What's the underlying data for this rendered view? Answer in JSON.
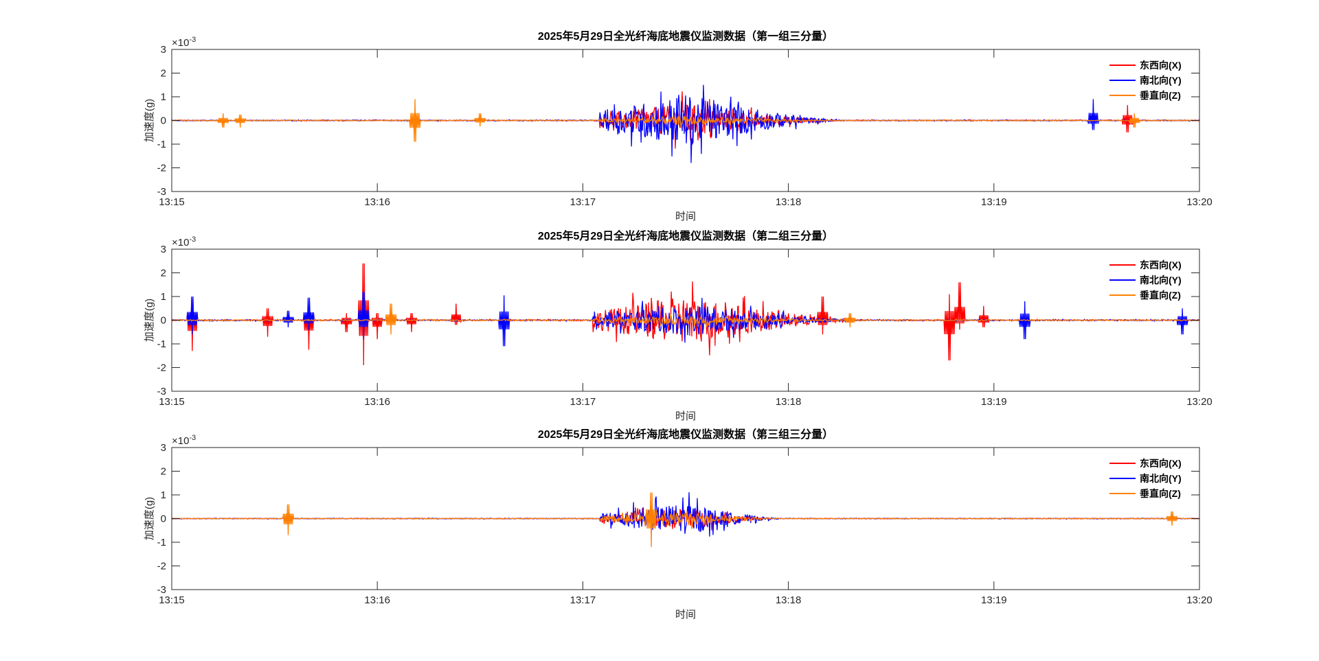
{
  "chart_data": [
    {
      "type": "line",
      "title": "2025年5月29日全光纤海底地震仪监测数据（第一组三分量）",
      "xlabel": "时间",
      "ylabel": "加速度(g)",
      "y_exponent": "×10",
      "y_exponent_power": "-3",
      "xlim": [
        "13:15",
        "13:20"
      ],
      "ylim": [
        -3,
        3
      ],
      "x_ticks": [
        "13:15",
        "13:16",
        "13:17",
        "13:18",
        "13:19",
        "13:20"
      ],
      "y_ticks": [
        "3",
        "2",
        "1",
        "0",
        "-1",
        "-2",
        "-3"
      ],
      "legend_placement": "top-right",
      "series": [
        {
          "name": "东西向(X)",
          "color": "#ff0000"
        },
        {
          "name": "南北向(Y)",
          "color": "#0000ff"
        },
        {
          "name": "垂直向(Z)",
          "color": "#ff8000"
        }
      ],
      "noise_level": 0.03,
      "main_event": {
        "start": "13:17:05",
        "peak": "13:17:30",
        "end": "13:18:20",
        "peak_amplitude": {
          "X": 1.3,
          "Y": 2.0,
          "Z": 0.35
        }
      },
      "spikes": [
        {
          "time": "13:15:15",
          "series": "Z",
          "max": 0.3,
          "min": -0.3
        },
        {
          "time": "13:15:20",
          "series": "Z",
          "max": 0.25,
          "min": -0.3
        },
        {
          "time": "13:16:11",
          "series": "Z",
          "max": 0.9,
          "min": -0.9
        },
        {
          "time": "13:16:30",
          "series": "Z",
          "max": 0.3,
          "min": -0.25
        },
        {
          "time": "13:19:29",
          "series": "Y",
          "max": 0.9,
          "min": -0.4
        },
        {
          "time": "13:19:39",
          "series": "X",
          "max": 0.65,
          "min": -0.5
        },
        {
          "time": "13:19:41",
          "series": "Z",
          "max": 0.3,
          "min": -0.3
        }
      ]
    },
    {
      "type": "line",
      "title": "2025年5月29日全光纤海底地震仪监测数据（第二组三分量）",
      "xlabel": "时间",
      "ylabel": "加速度(g)",
      "y_exponent": "×10",
      "y_exponent_power": "-3",
      "xlim": [
        "13:15",
        "13:20"
      ],
      "ylim": [
        -3,
        3
      ],
      "x_ticks": [
        "13:15",
        "13:16",
        "13:17",
        "13:18",
        "13:19",
        "13:20"
      ],
      "y_ticks": [
        "3",
        "2",
        "1",
        "0",
        "-1",
        "-2",
        "-3"
      ],
      "legend_placement": "top-right",
      "series": [
        {
          "name": "东西向(X)",
          "color": "#ff0000"
        },
        {
          "name": "南北向(Y)",
          "color": "#0000ff"
        },
        {
          "name": "垂直向(Z)",
          "color": "#ff8000"
        }
      ],
      "noise_level": 0.04,
      "main_event": {
        "start": "13:17:03",
        "peak": "13:17:31",
        "end": "13:18:25",
        "peak_amplitude": {
          "X": 1.9,
          "Y": 1.2,
          "Z": 0.35
        }
      },
      "spikes": [
        {
          "time": "13:15:06",
          "series": "X",
          "max": 0.9,
          "min": -1.3
        },
        {
          "time": "13:15:06",
          "series": "Y",
          "max": 1.0,
          "min": -0.6
        },
        {
          "time": "13:15:28",
          "series": "X",
          "max": 0.5,
          "min": -0.7
        },
        {
          "time": "13:15:34",
          "series": "Y",
          "max": 0.4,
          "min": -0.3
        },
        {
          "time": "13:15:40",
          "series": "Y",
          "max": 0.95,
          "min": -0.4
        },
        {
          "time": "13:15:40",
          "series": "X",
          "max": 0.3,
          "min": -1.25
        },
        {
          "time": "13:15:51",
          "series": "X",
          "max": 0.3,
          "min": -0.5
        },
        {
          "time": "13:15:56",
          "series": "X",
          "max": 2.4,
          "min": -1.9
        },
        {
          "time": "13:15:56",
          "series": "Y",
          "max": 1.2,
          "min": -0.8
        },
        {
          "time": "13:16:00",
          "series": "X",
          "max": 0.3,
          "min": -0.8
        },
        {
          "time": "13:16:04",
          "series": "Z",
          "max": 0.7,
          "min": -0.6
        },
        {
          "time": "13:16:10",
          "series": "X",
          "max": 0.3,
          "min": -0.5
        },
        {
          "time": "13:16:23",
          "series": "X",
          "max": 0.7,
          "min": -0.2
        },
        {
          "time": "13:16:37",
          "series": "Y",
          "max": 1.05,
          "min": -1.1
        },
        {
          "time": "13:18:10",
          "series": "X",
          "max": 1.0,
          "min": -0.6
        },
        {
          "time": "13:18:18",
          "series": "Z",
          "max": 0.3,
          "min": -0.3
        },
        {
          "time": "13:18:47",
          "series": "X",
          "max": 1.1,
          "min": -1.7
        },
        {
          "time": "13:18:50",
          "series": "X",
          "max": 1.6,
          "min": -0.4
        },
        {
          "time": "13:18:57",
          "series": "X",
          "max": 0.6,
          "min": -0.3
        },
        {
          "time": "13:19:09",
          "series": "Y",
          "max": 0.8,
          "min": -0.8
        },
        {
          "time": "13:19:55",
          "series": "Y",
          "max": 0.5,
          "min": -0.6
        }
      ]
    },
    {
      "type": "line",
      "title": "2025年5月29日全光纤海底地震仪监测数据（第三组三分量）",
      "xlabel": "时间",
      "ylabel": "加速度(g)",
      "y_exponent": "×10",
      "y_exponent_power": "-3",
      "xlim": [
        "13:15",
        "13:20"
      ],
      "ylim": [
        -3,
        3
      ],
      "x_ticks": [
        "13:15",
        "13:16",
        "13:17",
        "13:18",
        "13:19",
        "13:20"
      ],
      "y_ticks": [
        "3",
        "2",
        "1",
        "0",
        "-1",
        "-2",
        "-3"
      ],
      "legend_placement": "top-right",
      "series": [
        {
          "name": "东西向(X)",
          "color": "#ff0000"
        },
        {
          "name": "南北向(Y)",
          "color": "#0000ff"
        },
        {
          "name": "垂直向(Z)",
          "color": "#ff8000"
        }
      ],
      "noise_level": 0.02,
      "main_event": {
        "start": "13:17:05",
        "peak": "13:17:30",
        "end": "13:18:00",
        "peak_amplitude": {
          "X": 0.8,
          "Y": 1.2,
          "Z": 0.5
        }
      },
      "spikes": [
        {
          "time": "13:15:34",
          "series": "Z",
          "max": 0.6,
          "min": -0.7
        },
        {
          "time": "13:17:20",
          "series": "Z",
          "max": 1.1,
          "min": -1.2
        },
        {
          "time": "13:19:52",
          "series": "Z",
          "max": 0.3,
          "min": -0.3
        }
      ]
    }
  ]
}
